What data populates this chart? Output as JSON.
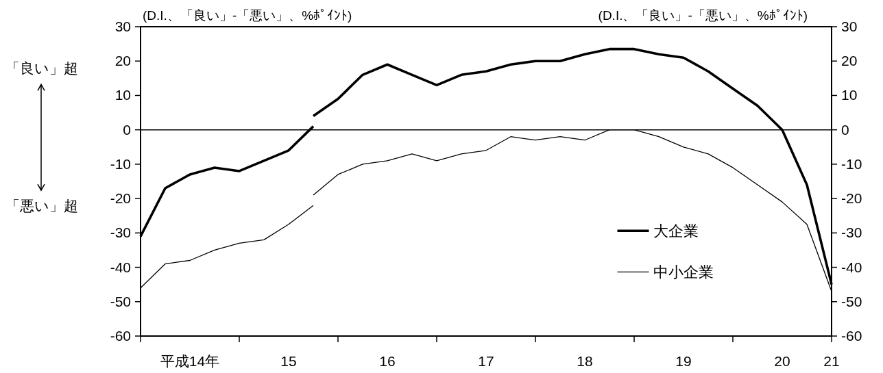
{
  "chart_data": {
    "type": "line",
    "ylabel": "(D.I.、「良い」-「悪い」、%ﾎﾟｲﾝﾄ)",
    "y2label": "(D.I.、「良い」-「悪い」、%ﾎﾟｲﾝﾄ)",
    "annotations": [
      "「良い」超",
      "「悪い」超"
    ],
    "series": [
      {
        "name": "大企業",
        "color": "#000000",
        "x": [
          14,
          14.25,
          14.5,
          14.75,
          15,
          15.25,
          15.5,
          15.75
        ],
        "values": [
          -31,
          -17,
          -13,
          -11,
          -12,
          -9,
          -6,
          1
        ]
      },
      {
        "name": "中小企業",
        "color": "#000000",
        "x": [
          14,
          14.25,
          14.5,
          14.75,
          15,
          15.25,
          15.5,
          15.75
        ],
        "values": [
          -46,
          -39,
          -38,
          -35,
          -33,
          -32,
          -27.5,
          -22
        ]
      },
      {
        "color": "#000000",
        "x": [
          15.75,
          16,
          16.25,
          16.5,
          16.75,
          17,
          17.25,
          17.5,
          17.75,
          18,
          18.25,
          18.5,
          18.75,
          19,
          19.25,
          19.5,
          19.75,
          20,
          20.25,
          20.5,
          20.75,
          21
        ],
        "values": [
          4,
          9,
          16,
          19,
          16,
          13,
          16,
          17,
          19,
          20,
          20,
          22,
          23.5,
          23.5,
          22,
          21,
          17,
          12,
          7,
          0,
          -16,
          -45
        ]
      },
      {
        "color": "#000000",
        "x": [
          15.75,
          16,
          16.25,
          16.5,
          16.75,
          17,
          17.25,
          17.5,
          17.75,
          18,
          18.25,
          18.5,
          18.75,
          19,
          19.25,
          19.5,
          19.75,
          20,
          20.25,
          20.5,
          20.75,
          21
        ],
        "values": [
          -19,
          -13,
          -10,
          -9,
          -7,
          -9,
          -7,
          -6,
          -2,
          -3,
          -2,
          -3,
          0,
          0,
          -2,
          -5,
          -7,
          -11,
          -16,
          -21,
          -27.5,
          -47
        ]
      }
    ],
    "xlim": [
      14,
      21
    ],
    "xticks": [
      {
        "value": 14,
        "label": null
      },
      {
        "value": 14.5,
        "label": "平成14年"
      },
      {
        "value": 15,
        "label": null
      },
      {
        "value": 15.5,
        "label": "15"
      },
      {
        "value": 16,
        "label": null
      },
      {
        "value": 16.5,
        "label": "16"
      },
      {
        "value": 17,
        "label": null
      },
      {
        "value": 17.5,
        "label": "17"
      },
      {
        "value": 18,
        "label": null
      },
      {
        "value": 18.5,
        "label": "18"
      },
      {
        "value": 19,
        "label": null
      },
      {
        "value": 19.5,
        "label": "19"
      },
      {
        "value": 20,
        "label": null
      },
      {
        "value": 20.5,
        "label": "20"
      },
      {
        "value": 21,
        "label": "21"
      }
    ],
    "ylim": [
      -60,
      30
    ],
    "yticks": [
      -60,
      -50,
      -40,
      -30,
      -20,
      -10,
      0,
      10,
      20,
      30
    ],
    "y2lim": [
      -60,
      30
    ],
    "y2ticks": [
      -60,
      -50,
      -40,
      -30,
      -20,
      -10,
      0,
      10,
      20,
      30
    ],
    "ref_lines": [
      {
        "axis": "y",
        "value": 0,
        "color": "#000000"
      }
    ],
    "legend": "bottom right",
    "line_style": "solid"
  }
}
